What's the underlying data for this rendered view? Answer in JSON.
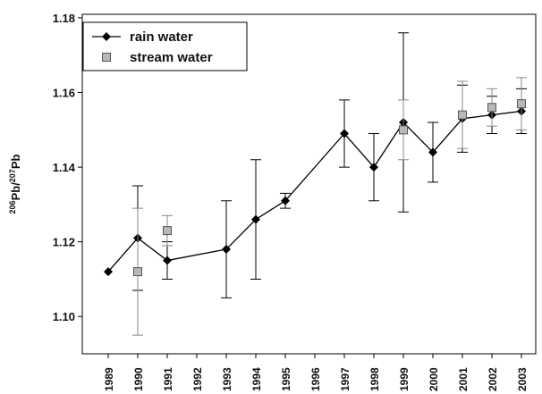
{
  "chart_data": {
    "type": "line",
    "y_label": [
      "206",
      "Pb/",
      "207",
      "Pb"
    ],
    "categories": [
      "1989",
      "1990",
      "1991",
      "1992",
      "1993",
      "1994",
      "1995",
      "1996",
      "1997",
      "1998",
      "1999",
      "2000",
      "2001",
      "2002",
      "2003"
    ],
    "series": [
      {
        "name": "rain water",
        "color": "#000000",
        "marker": "diamond",
        "values": [
          1.112,
          1.121,
          1.115,
          null,
          1.118,
          1.126,
          1.131,
          null,
          1.149,
          1.14,
          1.152,
          1.144,
          1.153,
          1.154,
          1.155
        ],
        "errors": [
          null,
          0.014,
          0.005,
          null,
          0.013,
          0.016,
          0.002,
          null,
          0.009,
          0.009,
          0.024,
          0.008,
          0.009,
          0.005,
          0.006
        ]
      },
      {
        "name": "stream water",
        "color": "#b8b8b8",
        "marker": "square",
        "values": [
          null,
          1.112,
          1.123,
          null,
          null,
          null,
          null,
          null,
          null,
          null,
          1.15,
          null,
          1.154,
          1.156,
          1.157
        ],
        "errors": [
          null,
          0.017,
          0.004,
          null,
          null,
          null,
          null,
          null,
          null,
          null,
          0.008,
          null,
          0.009,
          0.005,
          0.007
        ]
      }
    ],
    "ylim": [
      1.09,
      1.18
    ],
    "yticks": [
      {
        "value": 1.1,
        "label": "1.10"
      },
      1.12,
      1.14,
      1.16,
      1.18
    ],
    "legend": "upper-left"
  }
}
